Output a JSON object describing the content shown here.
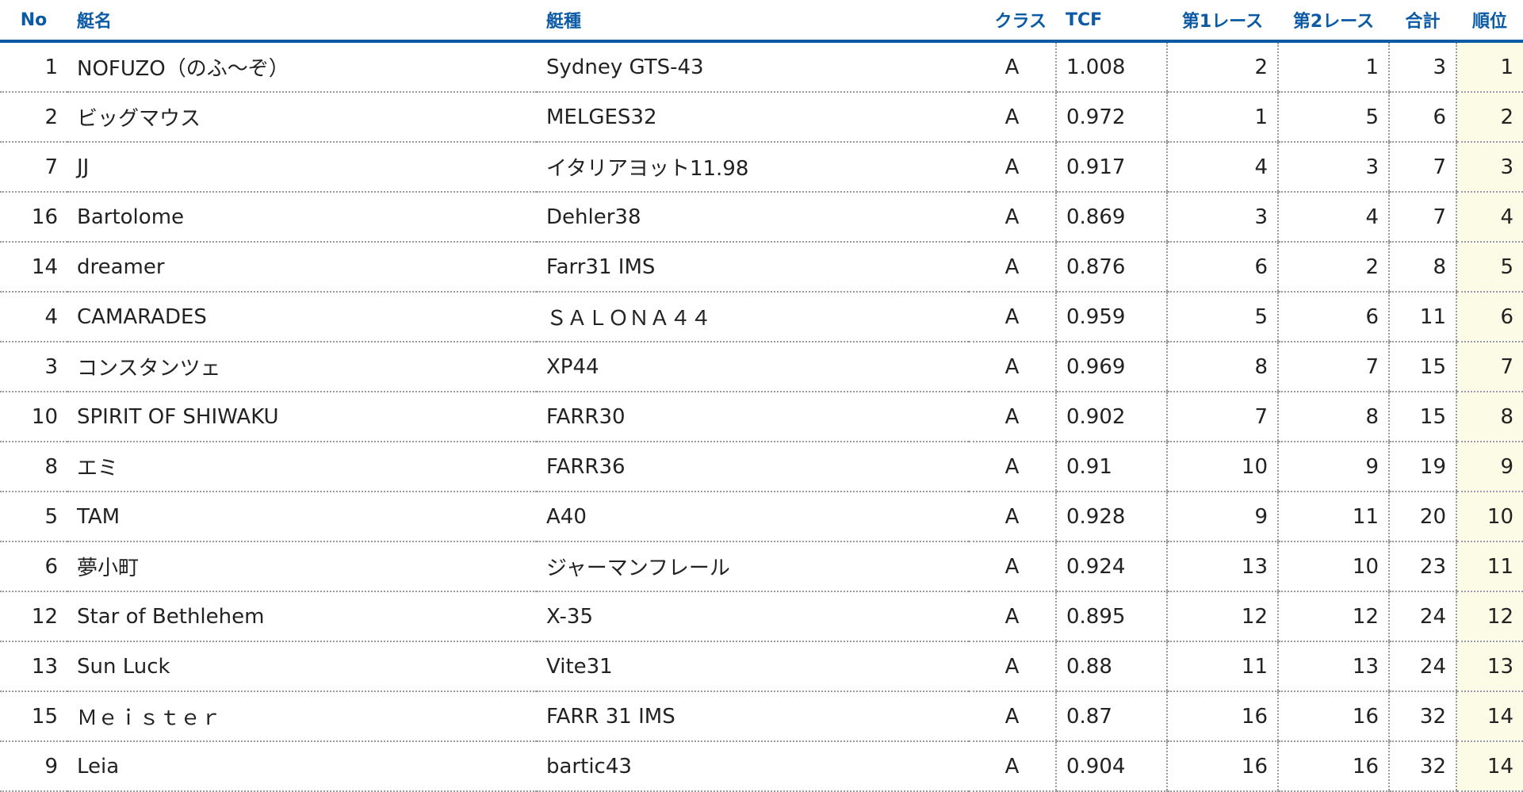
{
  "headers": {
    "no": "No",
    "boat_name": "艇名",
    "boat_type": "艇種",
    "class": "クラス",
    "tcf": "TCF",
    "race1": "第1レース",
    "race2": "第2レース",
    "total": "合計",
    "rank": "順位"
  },
  "rows": [
    {
      "no": "1",
      "name": "NOFUZO（のふ〜ぞ）",
      "type": "Sydney GTS-43",
      "class": "A",
      "tcf": "1.008",
      "race1": "2",
      "race2": "1",
      "total": "3",
      "rank": "1"
    },
    {
      "no": "2",
      "name": "ビッグマウス",
      "type": "MELGES32",
      "class": "A",
      "tcf": "0.972",
      "race1": "1",
      "race2": "5",
      "total": "6",
      "rank": "2"
    },
    {
      "no": "7",
      "name": "JJ",
      "type": "イタリアヨット11.98",
      "class": "A",
      "tcf": "0.917",
      "race1": "4",
      "race2": "3",
      "total": "7",
      "rank": "3"
    },
    {
      "no": "16",
      "name": "Bartolome",
      "type": "Dehler38",
      "class": "A",
      "tcf": "0.869",
      "race1": "3",
      "race2": "4",
      "total": "7",
      "rank": "4"
    },
    {
      "no": "14",
      "name": "dreamer",
      "type": "Farr31 IMS",
      "class": "A",
      "tcf": "0.876",
      "race1": "6",
      "race2": "2",
      "total": "8",
      "rank": "5"
    },
    {
      "no": "4",
      "name": "CAMARADES",
      "type": "ＳＡＬＯＮＡ４４",
      "class": "A",
      "tcf": "0.959",
      "race1": "5",
      "race2": "6",
      "total": "11",
      "rank": "6"
    },
    {
      "no": "3",
      "name": "コンスタンツェ",
      "type": "XP44",
      "class": "A",
      "tcf": "0.969",
      "race1": "8",
      "race2": "7",
      "total": "15",
      "rank": "7"
    },
    {
      "no": "10",
      "name": "SPIRIT OF SHIWAKU",
      "type": "FARR30",
      "class": "A",
      "tcf": "0.902",
      "race1": "7",
      "race2": "8",
      "total": "15",
      "rank": "8"
    },
    {
      "no": "8",
      "name": "エミ",
      "type": "FARR36",
      "class": "A",
      "tcf": "0.91",
      "race1": "10",
      "race2": "9",
      "total": "19",
      "rank": "9"
    },
    {
      "no": "5",
      "name": "TAM",
      "type": "A40",
      "class": "A",
      "tcf": "0.928",
      "race1": "9",
      "race2": "11",
      "total": "20",
      "rank": "10"
    },
    {
      "no": "6",
      "name": "夢小町",
      "type": "ジャーマンフレール",
      "class": "A",
      "tcf": "0.924",
      "race1": "13",
      "race2": "10",
      "total": "23",
      "rank": "11"
    },
    {
      "no": "12",
      "name": "Star of Bethlehem",
      "type": "X-35",
      "class": "A",
      "tcf": "0.895",
      "race1": "12",
      "race2": "12",
      "total": "24",
      "rank": "12"
    },
    {
      "no": "13",
      "name": "Sun Luck",
      "type": "Vite31",
      "class": "A",
      "tcf": "0.88",
      "race1": "11",
      "race2": "13",
      "total": "24",
      "rank": "13"
    },
    {
      "no": "15",
      "name": "Ｍｅｉｓｔｅｒ",
      "type": "FARR 31 IMS",
      "class": "A",
      "tcf": "0.87",
      "race1": "16",
      "race2": "16",
      "total": "32",
      "rank": "14"
    },
    {
      "no": "9",
      "name": "Leia",
      "type": "bartic43",
      "class": "A",
      "tcf": "0.904",
      "race1": "16",
      "race2": "16",
      "total": "32",
      "rank": "14"
    }
  ],
  "colors": {
    "header_text": "#0b5aa6",
    "header_rule": "#0b5aa6",
    "rank_background": "#fbfbe6",
    "row_divider": "#9a9a9a"
  }
}
